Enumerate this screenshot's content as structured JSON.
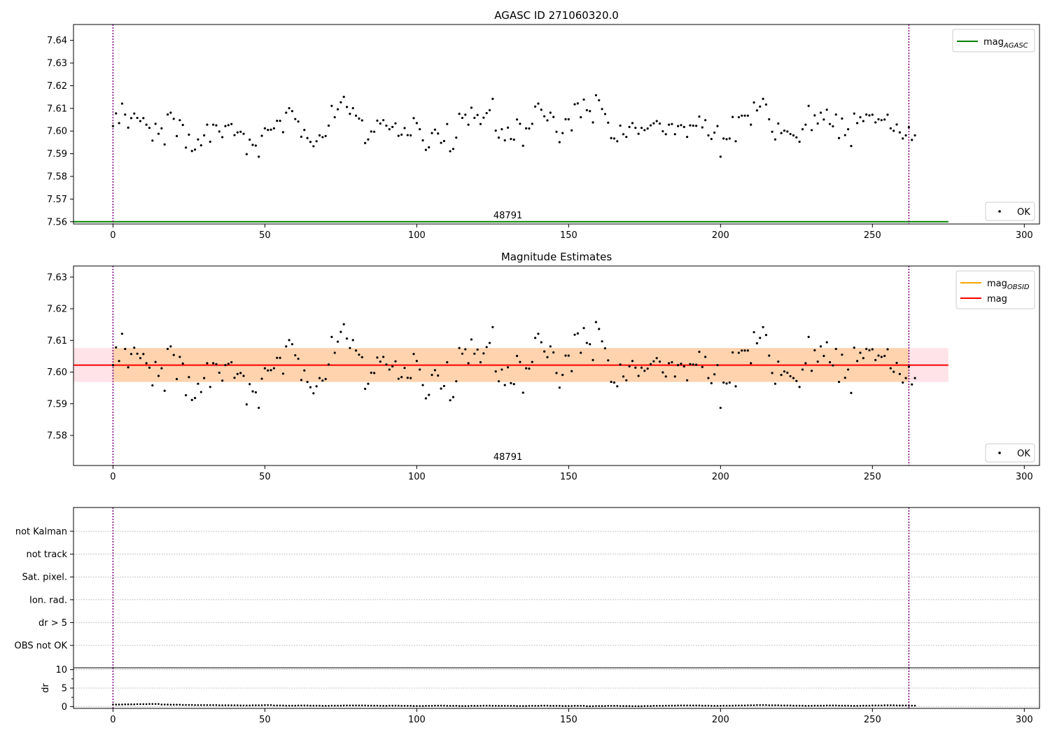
{
  "chart_data": [
    {
      "type": "scatter",
      "title": "AGASC ID 271060320.0",
      "xlim": [
        -13,
        305
      ],
      "ylim": [
        7.559,
        7.647
      ],
      "xticks": [
        0,
        50,
        100,
        150,
        200,
        250,
        300
      ],
      "yticks": [
        7.56,
        7.57,
        7.58,
        7.59,
        7.6,
        7.61,
        7.62,
        7.63,
        7.64
      ],
      "ytick_labels": [
        "7.56",
        "7.57",
        "7.58",
        "7.59",
        "7.60",
        "7.61",
        "7.62",
        "7.63",
        "7.64"
      ],
      "annotation": "48791",
      "annotation_x": 130,
      "obs_bounds": [
        0,
        262
      ],
      "reference_line": {
        "name": "mag_AGASC",
        "value": 7.56,
        "x_range": [
          -13,
          275
        ],
        "color": "#008000"
      },
      "legends": [
        {
          "position": "top-right",
          "entries": [
            {
              "label": "mag",
              "sub": "AGASC",
              "kind": "line",
              "color": "#008000"
            }
          ]
        },
        {
          "position": "bottom-right",
          "entries": [
            {
              "label": "OK",
              "kind": "point",
              "color": "#000000"
            }
          ]
        }
      ]
    },
    {
      "type": "scatter",
      "title": "Magnitude Estimates",
      "xlim": [
        -13,
        305
      ],
      "ylim": [
        7.5705,
        7.6335
      ],
      "xticks": [
        0,
        50,
        100,
        150,
        200,
        250,
        300
      ],
      "yticks": [
        7.58,
        7.59,
        7.6,
        7.61,
        7.62,
        7.63
      ],
      "ytick_labels": [
        "7.58",
        "7.59",
        "7.60",
        "7.61",
        "7.62",
        "7.63"
      ],
      "annotation": "48791",
      "annotation_x": 130,
      "obs_bounds": [
        0,
        262
      ],
      "mag_line": {
        "value": 7.6022,
        "x_range": [
          -13,
          275
        ],
        "color": "#ff0000"
      },
      "mag_band": {
        "low": 7.5969,
        "high": 7.6076,
        "x_range": [
          -13,
          275
        ],
        "color": "#ffc0cb"
      },
      "obsid_band": {
        "low": 7.5969,
        "high": 7.6076,
        "x_range": [
          0,
          262
        ],
        "color": "#ffa500"
      },
      "legends": [
        {
          "position": "top-right",
          "entries": [
            {
              "label": "mag",
              "sub": "OBSID",
              "kind": "line",
              "color": "#ffa500"
            },
            {
              "label": "mag",
              "sub": "",
              "kind": "line",
              "color": "#ff0000"
            }
          ]
        },
        {
          "position": "bottom-right",
          "entries": [
            {
              "label": "OK",
              "kind": "point",
              "color": "#000000"
            }
          ]
        }
      ]
    },
    {
      "type": "flags",
      "categories": [
        "not Kalman",
        "not track",
        "Sat. pixel.",
        "Ion. rad.",
        "dr > 5",
        "OBS not OK"
      ],
      "xlim": [
        -13,
        305
      ],
      "obs_bounds": [
        0,
        262
      ]
    },
    {
      "type": "scatter",
      "ylabel": "dr",
      "xlim": [
        -13,
        305
      ],
      "ylim": [
        -0.5,
        10.5
      ],
      "xticks": [
        0,
        50,
        100,
        150,
        200,
        250,
        300
      ],
      "yticks": [
        0,
        5,
        10
      ],
      "ytick_labels": [
        "0",
        "5",
        "10"
      ],
      "obs_bounds": [
        0,
        262
      ],
      "dr_values": [
        0.55,
        0.6,
        0.65,
        0.7,
        0.55,
        0.5,
        0.45,
        0.4,
        0.4,
        0.35,
        0.35,
        0.3,
        0.35,
        0.4,
        0.3,
        0.25,
        0.3,
        0.25,
        0.2,
        0.25,
        0.3,
        0.3,
        0.25,
        0.2,
        0.25,
        0.2,
        0.15,
        0.2,
        0.25,
        0.2,
        0.15,
        0.2,
        0.25,
        0.2,
        0.2,
        0.15,
        0.2,
        0.25,
        0.2,
        0.15,
        0.2,
        0.1,
        0.15,
        0.2,
        0.15,
        0.1,
        0.15,
        0.2,
        0.25,
        0.3,
        0.3,
        0.25,
        0.2,
        0.25,
        0.3,
        0.35,
        0.4,
        0.35,
        0.3,
        0.25,
        0.2,
        0.25,
        0.3,
        0.25,
        0.2,
        0.25,
        0.3,
        0.35,
        0.3,
        0.25
      ]
    }
  ],
  "series_mag": [
    7.6022,
    7.6078,
    7.6035,
    7.6121,
    7.6073,
    7.6015,
    7.6057,
    7.6077,
    7.6058,
    7.6044,
    7.6057,
    7.6028,
    7.6014,
    7.5958,
    7.6032,
    7.5988,
    7.6012,
    7.5941,
    7.6073,
    7.6081,
    7.6054,
    7.5978,
    7.6048,
    7.6027,
    7.5927,
    7.5984,
    7.5912,
    7.5918,
    7.5963,
    7.5937,
    7.5981,
    7.6028,
    7.5953,
    7.6028,
    7.6025,
    7.5998,
    7.5973,
    7.6022,
    7.6026,
    7.6031,
    7.5982,
    7.5994,
    7.5997,
    7.5988,
    7.5898,
    7.5962,
    7.5939,
    7.5936,
    7.5887,
    7.5979,
    7.6012,
    7.6005,
    7.6006,
    7.6012,
    7.6045,
    7.6045,
    7.5995,
    7.6081,
    7.6101,
    7.6088,
    7.6053,
    7.6042,
    7.5975,
    7.6005,
    7.5969,
    7.5952,
    7.5933,
    7.5955,
    7.5981,
    7.5973,
    7.5978,
    7.6024,
    7.6111,
    7.6061,
    7.6096,
    7.6127,
    7.6151,
    7.6106,
    7.6076,
    7.6101,
    7.6068,
    7.6055,
    7.6047,
    7.5947,
    7.5963,
    7.5998,
    7.5997,
    7.6046,
    7.6033,
    7.6048,
    7.6024,
    7.6008,
    7.6018,
    7.6034,
    7.5979,
    7.5984,
    7.6013,
    7.5982,
    7.5981,
    7.6057,
    7.6035,
    7.6008,
    7.5959,
    7.5917,
    7.5928,
    7.5991,
    7.6006,
    7.5989,
    7.5948,
    7.5956,
    7.6031,
    7.5911,
    7.5921,
    7.5971,
    7.6076,
    7.6058,
    7.6072,
    7.6028,
    7.6103,
    7.6058,
    7.6071,
    7.6031,
    7.6059,
    7.6079,
    7.6092,
    7.6142,
    7.6002,
    7.5971,
    7.6008,
    7.5959,
    7.6015,
    7.5965,
    7.5962,
    7.6051,
    7.6032,
    7.5935,
    7.6012,
    7.6011,
    7.6032,
    7.6108,
    7.6121,
    7.6094,
    7.6065,
    7.6047,
    7.6081,
    7.6062,
    7.5997,
    7.5951,
    7.5991,
    7.6052,
    7.6052,
    7.6003,
    7.6118,
    7.6122,
    7.6061,
    7.6139,
    7.6092,
    7.6088,
    7.6038,
    7.6158,
    7.6136,
    7.6097,
    7.6075,
    7.6037,
    7.5969,
    7.5967,
    7.5955,
    7.6024,
    7.5986,
    7.5974,
    7.6018,
    7.6035,
    7.6014,
    7.5988,
    7.6014,
    7.6004,
    7.6011,
    7.6025,
    7.6034,
    7.6044,
    7.6033,
    7.5999,
    7.5986,
    7.6028,
    7.6031,
    7.5986,
    7.6022,
    7.6026,
    7.6018,
    7.5974,
    7.6025,
    7.6024,
    7.6023,
    7.6064,
    7.6016,
    7.6048,
    7.5981,
    7.5965,
    7.5993,
    7.6022,
    7.5887,
    7.5967,
    7.5964,
    7.5967,
    7.6062,
    7.5955,
    7.6061,
    7.6068,
    7.6068,
    7.6068,
    7.6028,
    7.6126,
    7.6091,
    7.6108,
    7.6142,
    7.6117,
    7.6052,
    7.5997,
    7.5963,
    7.6033,
    7.5991,
    7.6002,
    7.5998,
    7.5987,
    7.5981,
    7.5972,
    7.5953,
    7.6008,
    7.6028,
    7.6111,
    7.6004,
    7.6069,
    7.6033,
    7.6081,
    7.6051,
    7.6094,
    7.6031,
    7.6021,
    7.6073,
    7.5969,
    7.6055,
    7.5982,
    7.6008,
    7.5934,
    7.6077,
    7.6035,
    7.6061,
    7.6044,
    7.6073,
    7.6069,
    7.6072,
    7.6038,
    7.6052,
    7.6048,
    7.6051,
    7.6072,
    7.6012,
    7.6001,
    7.6029,
    7.5994,
    7.5967,
    7.5981,
    7.6017,
    7.5961,
    7.5981
  ]
}
